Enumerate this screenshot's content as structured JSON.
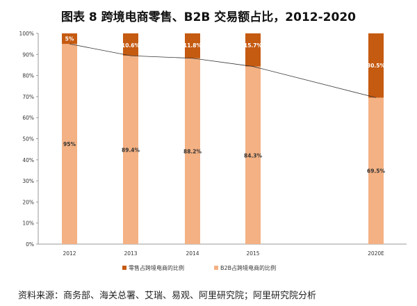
{
  "title": "图表 8   跨境电商零售、B2B 交易额占比，2012-2020",
  "source": "资料来源：商务部、海关总署、艾瑞、易观、阿里研究院；阿里研究院分析",
  "chart_data": {
    "type": "bar",
    "stacked": true,
    "title": "图表 8   跨境电商零售、B2B 交易额占比，2012-2020",
    "categories": [
      "2012",
      "2013",
      "2014",
      "2015",
      "2020E"
    ],
    "series": [
      {
        "name": "B2B占跨境电商的比例",
        "values": [
          95,
          89.4,
          88.2,
          84.3,
          69.5
        ],
        "labels": [
          "95%",
          "89.4%",
          "88.2%",
          "84.3%",
          "69.5%"
        ],
        "color": "#F4B183"
      },
      {
        "name": "零售占跨境电商的比例",
        "values": [
          5,
          10.6,
          11.8,
          15.7,
          30.5
        ],
        "labels": [
          "5%",
          "10.6%",
          "11.8%",
          "15.7%",
          "30.5%"
        ],
        "color": "#C55A11"
      }
    ],
    "trend_line": {
      "follows": "B2B占跨境电商的比例",
      "color": "#333333"
    },
    "ylim": [
      0,
      100
    ],
    "yticks": [
      "0%",
      "10%",
      "20%",
      "30%",
      "40%",
      "50%",
      "60%",
      "70%",
      "80%",
      "90%",
      "100%"
    ],
    "grid": false,
    "legend": "bottom",
    "legend_order": [
      "零售占跨境电商的比例",
      "B2B占跨境电商的比例"
    ]
  }
}
